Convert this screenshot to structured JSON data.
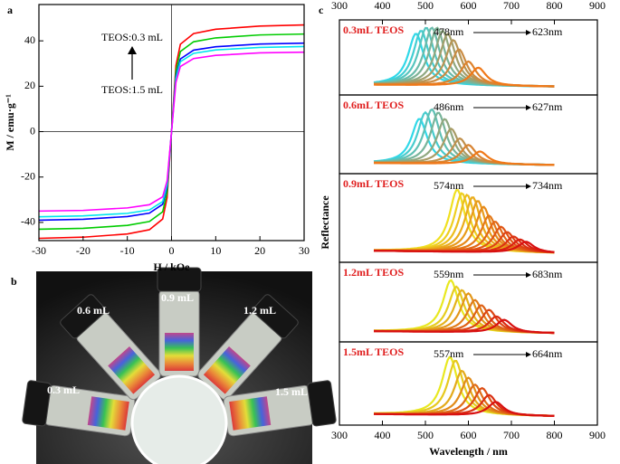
{
  "chart_data": [
    {
      "type": "line",
      "panel_label": "a",
      "x_label": "H / kOe",
      "y_label": "M / emu·g⁻¹",
      "x": [
        -30,
        -20,
        -10,
        -5,
        -2,
        -1,
        0,
        1,
        2,
        5,
        10,
        20,
        30
      ],
      "series": [
        {
          "color": "#ff0000",
          "values": [
            -47,
            -46.5,
            -45.1,
            -43.2,
            -38.5,
            -29.1,
            0,
            29.1,
            38.5,
            43.2,
            45.1,
            46.5,
            47
          ]
        },
        {
          "color": "#00cc00",
          "values": [
            -43,
            -42.6,
            -41.3,
            -39.6,
            -35.3,
            -26.7,
            0,
            26.7,
            35.3,
            39.6,
            41.3,
            42.6,
            43
          ]
        },
        {
          "color": "#0000ff",
          "values": [
            -39,
            -38.6,
            -37.4,
            -35.9,
            -32,
            -24.2,
            0,
            24.2,
            32,
            35.9,
            37.4,
            38.6,
            39
          ]
        },
        {
          "color": "#00e5ee",
          "values": [
            -37.5,
            -37.1,
            -36,
            -34.5,
            -30.8,
            -23.3,
            0,
            23.3,
            30.8,
            34.5,
            36,
            37.1,
            37.5
          ]
        },
        {
          "color": "#ff00ff",
          "values": [
            -35,
            -34.7,
            -33.6,
            -32.2,
            -28.7,
            -21.7,
            0,
            21.7,
            28.7,
            32.2,
            33.6,
            34.7,
            35
          ]
        }
      ],
      "xlim": [
        -30,
        30
      ],
      "xticks": [
        -30,
        -20,
        -10,
        0,
        10,
        20,
        30
      ],
      "ylim": [
        -48,
        56
      ],
      "yticks": [
        -40,
        -20,
        0,
        20,
        40
      ],
      "annotations": [
        "TEOS:0.3 mL",
        "TEOS:1.5 mL"
      ]
    },
    {
      "type": "spectra",
      "panel_label": "c",
      "x_label": "Wavelength / nm",
      "y_label": "Reflectance",
      "xlim": [
        300,
        900
      ],
      "xticks": [
        300,
        400,
        500,
        600,
        700,
        800,
        900
      ],
      "ylim": [
        0,
        1
      ],
      "spectrum_range": [
        380,
        800
      ],
      "panels": [
        {
          "label": "0.3mL TEOS",
          "range_labels": [
            "478nm",
            "623nm"
          ],
          "gradient": [
            "#30d8e8",
            "#f07818"
          ],
          "peaks": [
            478,
            490,
            502,
            515,
            527,
            540,
            552,
            565,
            578,
            600,
            623
          ],
          "heights": [
            0.85,
            0.9,
            0.95,
            0.95,
            0.95,
            0.9,
            0.85,
            0.75,
            0.6,
            0.4,
            0.3
          ]
        },
        {
          "label": "0.6mL TEOS",
          "range_labels": [
            "486nm",
            "627nm"
          ],
          "gradient": [
            "#30d8e8",
            "#f07818"
          ],
          "peaks": [
            486,
            500,
            515,
            530,
            545,
            560,
            580,
            600,
            627
          ],
          "heights": [
            0.7,
            0.8,
            0.85,
            0.8,
            0.7,
            0.55,
            0.4,
            0.3,
            0.2
          ]
        },
        {
          "label": "0.9mL TEOS",
          "range_labels": [
            "574nm",
            "734nm"
          ],
          "gradient": [
            "#f0e020",
            "#d81010"
          ],
          "peaks": [
            574,
            585,
            597,
            610,
            622,
            635,
            648,
            662,
            676,
            690,
            705,
            720,
            734
          ],
          "heights": [
            0.85,
            0.8,
            0.78,
            0.75,
            0.7,
            0.62,
            0.5,
            0.42,
            0.35,
            0.28,
            0.22,
            0.18,
            0.15
          ]
        },
        {
          "label": "1.2mL TEOS",
          "range_labels": [
            "559nm",
            "683nm"
          ],
          "gradient": [
            "#e8e820",
            "#d81010"
          ],
          "peaks": [
            559,
            572,
            585,
            600,
            615,
            630,
            648,
            665,
            683
          ],
          "heights": [
            0.8,
            0.7,
            0.65,
            0.6,
            0.5,
            0.42,
            0.35,
            0.25,
            0.2
          ]
        },
        {
          "label": "1.5mL TEOS",
          "range_labels": [
            "557nm",
            "664nm"
          ],
          "gradient": [
            "#e8e820",
            "#d81010"
          ],
          "peaks": [
            557,
            570,
            585,
            600,
            615,
            632,
            648,
            664
          ],
          "heights": [
            0.85,
            0.8,
            0.65,
            0.55,
            0.45,
            0.4,
            0.3,
            0.2
          ]
        }
      ]
    }
  ],
  "photo": {
    "panel_label": "b",
    "labels": [
      "0.3 mL",
      "0.6 mL",
      "0.9 mL",
      "1.2 mL",
      "1.5 mL"
    ]
  }
}
